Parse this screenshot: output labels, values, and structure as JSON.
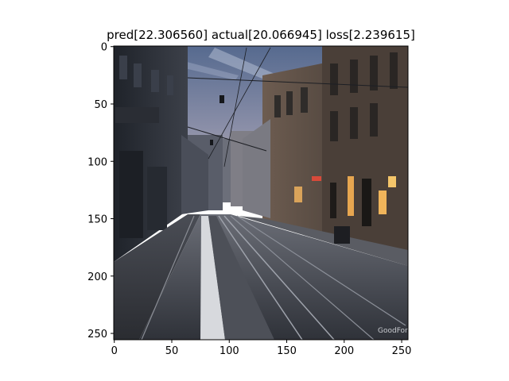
{
  "chart_data": {
    "type": "image",
    "title": "pred[22.306560] actual[20.066945] loss[2.239615]",
    "x_ticks": [
      0,
      50,
      100,
      150,
      200,
      250
    ],
    "y_ticks": [
      0,
      50,
      100,
      150,
      200,
      250
    ],
    "xlim": [
      -0.5,
      255.5
    ],
    "ylim": [
      255.5,
      -0.5
    ],
    "image_size": [
      256,
      256
    ],
    "watermark": "GoodFon",
    "colors": {
      "sky_top": "#5d6f93",
      "sky_bottom": "#c9b7a8",
      "street_dark": "#3a3d44",
      "street_light": "#6d7079",
      "building_left": "#2b2f37",
      "building_right": "#56483f",
      "warm_light": "#f0b45a",
      "lane_white": "#d7d9dd"
    }
  }
}
